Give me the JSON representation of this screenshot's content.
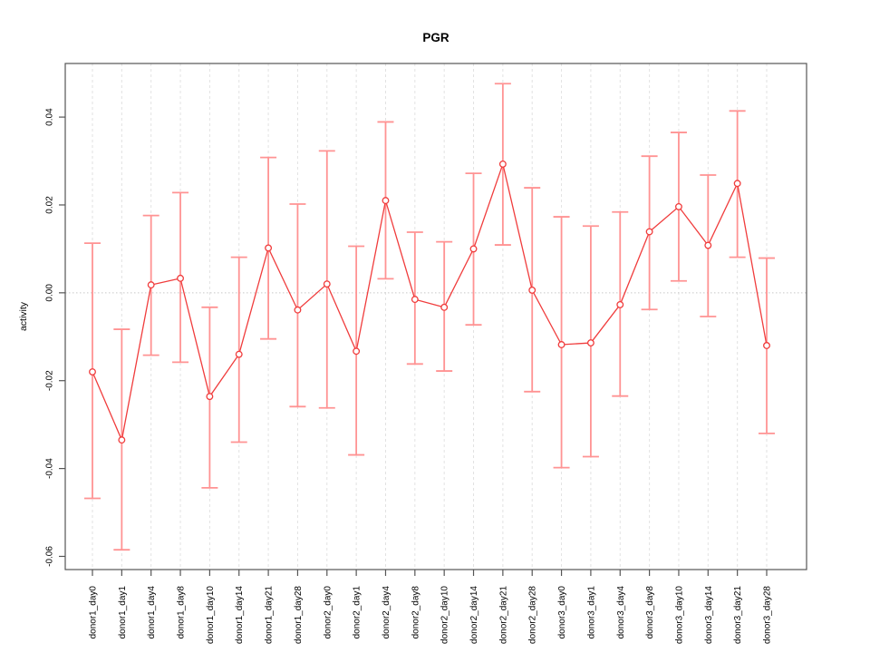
{
  "chart_data": {
    "type": "line",
    "title": "PGR",
    "xlabel": "",
    "ylabel": "activity",
    "legend": "none",
    "grid": "vertical dashed gridline per category; dotted horizontal line at y=0",
    "marker": "open-circle",
    "error_bars": true,
    "ylim": [
      -0.063,
      0.0522
    ],
    "yticks": [
      {
        "value": 0.04,
        "label": "0.04"
      },
      {
        "value": 0.02,
        "label": "0.02"
      },
      {
        "value": 0.0,
        "label": "0.00"
      },
      {
        "value": -0.02,
        "label": "-0.02"
      },
      {
        "value": -0.04,
        "label": "-0.04"
      },
      {
        "value": -0.06,
        "label": "-0.06"
      }
    ],
    "categories": [
      "donor1_day0",
      "donor1_day1",
      "donor1_day4",
      "donor1_day8",
      "donor1_day10",
      "donor1_day14",
      "donor1_day21",
      "donor1_day28",
      "donor2_day0",
      "donor2_day1",
      "donor2_day4",
      "donor2_day8",
      "donor2_day10",
      "donor2_day14",
      "donor2_day21",
      "donor2_day28",
      "donor3_day0",
      "donor3_day1",
      "donor3_day4",
      "donor3_day8",
      "donor3_day10",
      "donor3_day14",
      "donor3_day21",
      "donor3_day28"
    ],
    "series": [
      {
        "name": "activity",
        "values": [
          -0.018,
          -0.0335,
          0.0018,
          0.0033,
          -0.0236,
          -0.014,
          0.0102,
          -0.0039,
          0.002,
          -0.0133,
          0.021,
          -0.0015,
          -0.0033,
          0.01,
          0.0293,
          0.0006,
          -0.0118,
          -0.0114,
          -0.0027,
          0.0139,
          0.0196,
          0.0108,
          0.0249,
          -0.012
        ],
        "error_low": [
          -0.0468,
          -0.0585,
          -0.0142,
          -0.0158,
          -0.0444,
          -0.034,
          -0.0105,
          -0.0259,
          -0.0262,
          -0.0369,
          0.0032,
          -0.0162,
          -0.0178,
          -0.0073,
          0.0109,
          -0.0225,
          -0.0398,
          -0.0373,
          -0.0235,
          -0.0038,
          0.0027,
          -0.0054,
          0.0081,
          -0.032
        ],
        "error_high": [
          0.0113,
          -0.0083,
          0.0176,
          0.0228,
          -0.0033,
          0.0081,
          0.0308,
          0.0202,
          0.0323,
          0.0106,
          0.0389,
          0.0138,
          0.0116,
          0.0272,
          0.0476,
          0.0239,
          0.0173,
          0.0152,
          0.0184,
          0.0311,
          0.0365,
          0.0268,
          0.0414,
          0.0079
        ]
      }
    ],
    "colors": {
      "line": "#f03c3c",
      "marker": "#f03c3c",
      "error_bar": "#ff9393",
      "grid": "#e2e2e2",
      "zero_line": "#c8c8c8",
      "axis": "#555555",
      "text": "#000000",
      "background": "#ffffff"
    }
  }
}
